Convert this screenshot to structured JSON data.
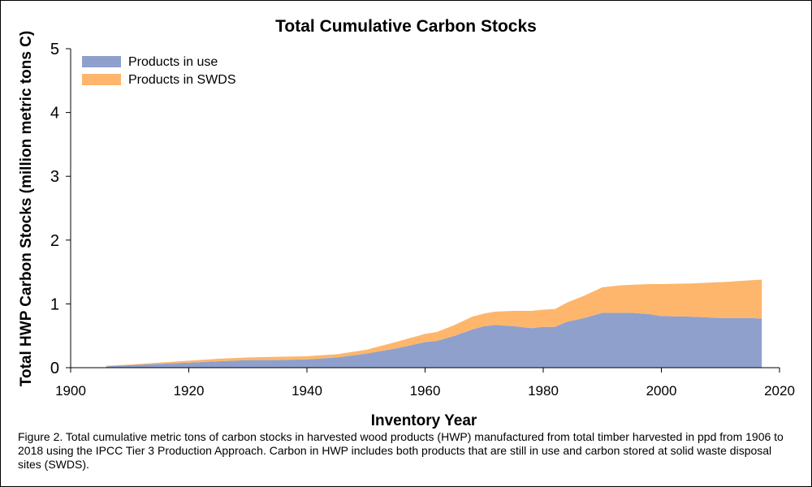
{
  "chart_data": {
    "type": "area",
    "stacked": true,
    "title": "Total Cumulative Carbon Stocks",
    "xlabel": "Inventory Year",
    "ylabel": "Total HWP Carbon Stocks (million metric tons C)",
    "xlim": [
      1900,
      2020
    ],
    "ylim": [
      0,
      5
    ],
    "xticks": [
      1900,
      1920,
      1940,
      1960,
      1980,
      2000,
      2020
    ],
    "yticks": [
      0,
      1,
      2,
      3,
      4,
      5
    ],
    "legend_position": "top-left",
    "grid": false,
    "x": [
      1906,
      1910,
      1915,
      1920,
      1925,
      1930,
      1935,
      1940,
      1945,
      1950,
      1955,
      1960,
      1962,
      1965,
      1968,
      1970,
      1972,
      1975,
      1978,
      1980,
      1982,
      1984,
      1987,
      1990,
      1993,
      1995,
      1998,
      2000,
      2005,
      2010,
      2015,
      2017
    ],
    "series": [
      {
        "name": "Products in use",
        "color": "#8fa0cc",
        "values": [
          0.02,
          0.04,
          0.06,
          0.08,
          0.1,
          0.12,
          0.12,
          0.13,
          0.16,
          0.22,
          0.3,
          0.4,
          0.42,
          0.5,
          0.6,
          0.65,
          0.67,
          0.65,
          0.62,
          0.64,
          0.64,
          0.72,
          0.78,
          0.86,
          0.86,
          0.86,
          0.84,
          0.81,
          0.8,
          0.78,
          0.78,
          0.77
        ]
      },
      {
        "name": "Products in SWDS",
        "color": "#fdb66b",
        "values": [
          0.01,
          0.01,
          0.02,
          0.03,
          0.04,
          0.04,
          0.05,
          0.05,
          0.05,
          0.06,
          0.1,
          0.13,
          0.14,
          0.17,
          0.2,
          0.2,
          0.21,
          0.24,
          0.27,
          0.27,
          0.28,
          0.3,
          0.35,
          0.4,
          0.43,
          0.44,
          0.47,
          0.5,
          0.52,
          0.56,
          0.59,
          0.61
        ]
      }
    ]
  },
  "caption": "Figure 2. Total cumulative metric tons of carbon stocks in harvested wood products (HWP) manufactured from total timber harvested in ppd from 1906 to 2018 using the IPCC Tier 3 Production Approach. Carbon in HWP includes both products that are still in use and carbon stored at solid waste disposal sites (SWDS)."
}
